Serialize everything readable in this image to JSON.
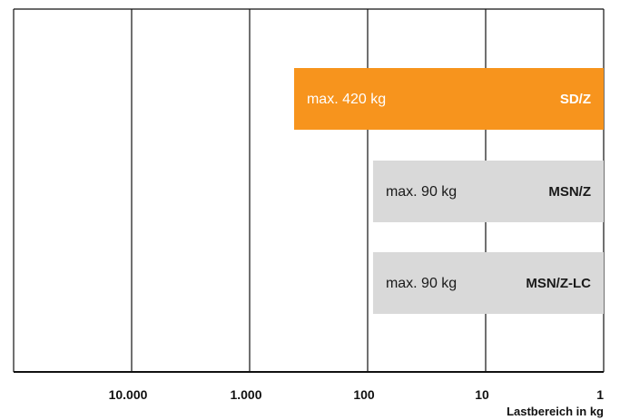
{
  "chart_data": {
    "type": "bar",
    "orientation": "horizontal",
    "x_axis": {
      "scale": "log",
      "reversed": true,
      "ticks": [
        {
          "value": 10000,
          "label": "10.000"
        },
        {
          "value": 1000,
          "label": "1.000"
        },
        {
          "value": 100,
          "label": "100"
        },
        {
          "value": 10,
          "label": "10"
        },
        {
          "value": 1,
          "label": "1"
        }
      ],
      "label": "Lastbereich in kg",
      "range": [
        100000,
        1
      ]
    },
    "grid": true,
    "bars": [
      {
        "category": "SD/Z",
        "max": 420,
        "range": [
          420,
          1
        ],
        "value_label": "max. 420 kg",
        "color": "#f7941d",
        "text_color": "#ffffff"
      },
      {
        "category": "MSN/Z",
        "max": 90,
        "range": [
          90,
          1
        ],
        "value_label": "max. 90 kg",
        "color": "#d9d9d9",
        "text_color": "#1a1a1a"
      },
      {
        "category": "MSN/Z-LC",
        "max": 90,
        "range": [
          90,
          1
        ],
        "value_label": "max. 90 kg",
        "color": "#d9d9d9",
        "text_color": "#1a1a1a"
      }
    ]
  }
}
